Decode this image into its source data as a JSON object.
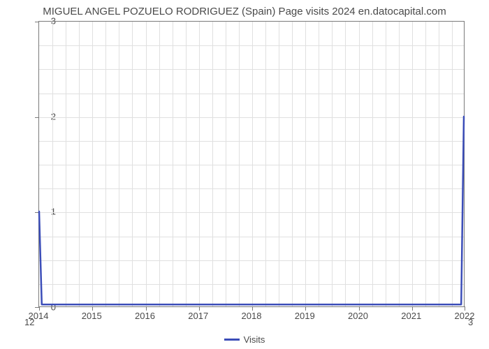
{
  "chart": {
    "type": "line",
    "title": "MIGUEL ANGEL POZUELO RODRIGUEZ (Spain) Page visits 2024 en.datocapital.com",
    "title_fontsize": 15,
    "title_color": "#4a4a4a",
    "background_color": "#ffffff",
    "plot_border_color": "#7a7a7a",
    "grid_color": "#e0e0e0",
    "xlim": [
      2014,
      2022
    ],
    "ylim": [
      0,
      3
    ],
    "x_ticks": [
      2014,
      2015,
      2016,
      2017,
      2018,
      2019,
      2020,
      2021,
      2022
    ],
    "y_ticks": [
      0,
      1,
      2,
      3
    ],
    "x_minor_count": 3,
    "tick_label_fontsize": 13,
    "tick_label_color": "#4a4a4a",
    "secondary_bottom_left_label": "12",
    "secondary_bottom_right_label": "3",
    "series": {
      "name": "Visits",
      "color": "#3b4db8",
      "line_width": 2.5,
      "x": [
        2014,
        2014.05,
        2014.1,
        2021.9,
        2021.95,
        2022
      ],
      "y": [
        1,
        0.02,
        0.02,
        0.02,
        0.02,
        2
      ]
    },
    "legend": {
      "position": "bottom-center",
      "label": "Visits",
      "swatch_color": "#3b4db8",
      "fontsize": 13,
      "text_color": "#4a4a4a"
    }
  }
}
